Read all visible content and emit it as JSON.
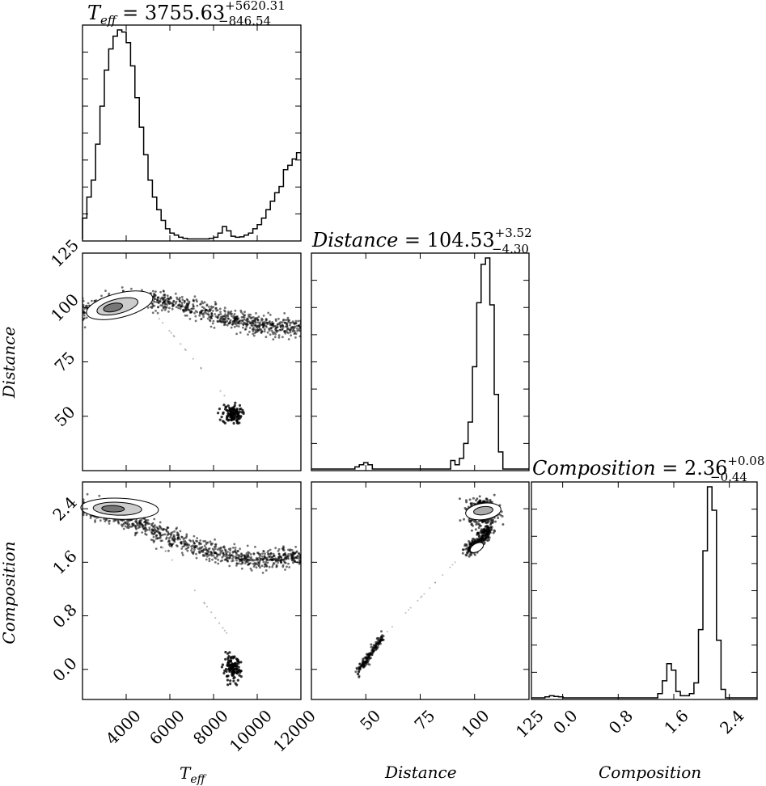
{
  "chart_data": {
    "type": "corner",
    "titles": {
      "teff": {
        "symbol": "T",
        "subscript": "eff",
        "equals": " = ",
        "value": "3755.63",
        "plus": "+5620.31",
        "minus": "−846.54"
      },
      "distance": {
        "name": "Distance",
        "equals": " = ",
        "value": "104.53",
        "plus": "+3.52",
        "minus": "−4.30"
      },
      "composition": {
        "name": "Composition",
        "equals": " = ",
        "value": "2.36",
        "plus": "+0.08",
        "minus": "−0.44"
      }
    },
    "axis_labels": {
      "teff_symbol": "T",
      "teff_subscript": "eff",
      "distance": "Distance",
      "composition": "Composition"
    },
    "ranges": {
      "teff": [
        2000,
        12000
      ],
      "distance": [
        25,
        125
      ],
      "composition": [
        -0.45,
        2.8
      ]
    },
    "ticks": {
      "teff": {
        "values": [
          4000,
          6000,
          8000,
          10000,
          12000
        ],
        "labels": [
          "4000",
          "6000",
          "8000",
          "10000",
          "12000"
        ]
      },
      "distance": {
        "values": [
          50,
          75,
          100,
          125
        ],
        "labels": [
          "50",
          "75",
          "100",
          "125"
        ]
      },
      "composition": {
        "values": [
          0.0,
          0.8,
          1.6,
          2.4
        ],
        "labels": [
          "0.0",
          "0.8",
          "1.6",
          "2.4"
        ]
      }
    },
    "histograms": {
      "teff": {
        "bin_start": 2000,
        "bin_width": 200,
        "counts": [
          0.1,
          0.2,
          0.28,
          0.45,
          0.63,
          0.8,
          0.9,
          0.96,
          0.99,
          0.98,
          0.93,
          0.82,
          0.67,
          0.53,
          0.4,
          0.28,
          0.2,
          0.14,
          0.09,
          0.05,
          0.03,
          0.02,
          0.01,
          0.005,
          0.002,
          0.002,
          0.002,
          0.002,
          0.002,
          0.005,
          0.01,
          0.03,
          0.06,
          0.04,
          0.015,
          0.01,
          0.012,
          0.02,
          0.03,
          0.05,
          0.07,
          0.1,
          0.14,
          0.18,
          0.22,
          0.25,
          0.33,
          0.35,
          0.38,
          0.41
        ]
      },
      "distance": {
        "bin_start": 25,
        "bin_width": 2,
        "counts": [
          0,
          0,
          0,
          0,
          0,
          0,
          0,
          0,
          0,
          0,
          0.01,
          0.02,
          0.03,
          0.02,
          0,
          0,
          0,
          0,
          0,
          0,
          0,
          0,
          0,
          0,
          0,
          0,
          0,
          0,
          0,
          0,
          0,
          0,
          0.04,
          0.02,
          0.05,
          0.12,
          0.22,
          0.48,
          0.78,
          0.96,
          0.99,
          0.77,
          0.35,
          0.08,
          0,
          0,
          0,
          0,
          0,
          0
        ]
      },
      "composition": {
        "bin_start": -0.45,
        "bin_width": 0.065,
        "counts": [
          0,
          0,
          0,
          0.005,
          0.01,
          0.007,
          0.005,
          0,
          0,
          0,
          0,
          0,
          0,
          0,
          0,
          0,
          0,
          0,
          0,
          0,
          0,
          0,
          0,
          0,
          0,
          0,
          0,
          0,
          0.02,
          0.08,
          0.16,
          0.13,
          0.03,
          0.01,
          0.01,
          0.02,
          0.07,
          0.32,
          0.69,
          0.99,
          0.88,
          0.27,
          0.04,
          0,
          0,
          0,
          0,
          0,
          0,
          0,
          0
        ]
      }
    },
    "scatter": {
      "distance_vs_teff": {
        "color": "#000000"
      },
      "composition_vs_teff": {
        "color": "#000000"
      },
      "composition_vs_distance": {
        "color": "#000000"
      }
    }
  }
}
